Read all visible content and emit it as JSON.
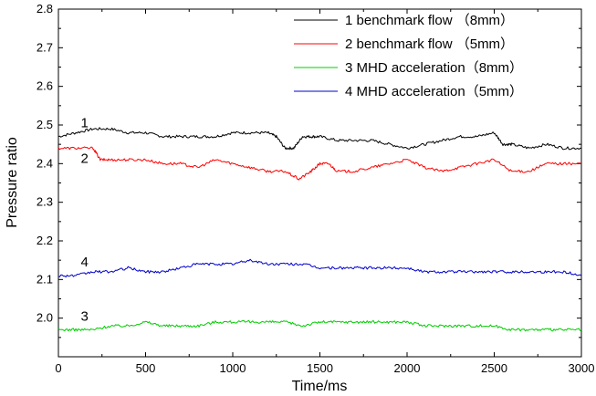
{
  "chart_data": {
    "type": "line",
    "xlabel": "Time/ms",
    "ylabel": "Pressure ratio",
    "xlim": [
      0,
      3000
    ],
    "ylim": [
      1.9,
      2.8
    ],
    "x_ticks": [
      "0",
      "500",
      "1000",
      "1500",
      "2000",
      "2500",
      "3000"
    ],
    "y_ticks": [
      "2.0",
      "2.1",
      "2.2",
      "2.3",
      "2.4",
      "2.5",
      "2.6",
      "2.7",
      "2.8"
    ],
    "legend_position": "top-right",
    "series": [
      {
        "name": "1 benchmark flow （8mm）",
        "curve_label": "1",
        "color": "#000000",
        "x": [
          0,
          100,
          200,
          300,
          400,
          500,
          600,
          700,
          800,
          900,
          1000,
          1100,
          1200,
          1250,
          1300,
          1350,
          1400,
          1450,
          1500,
          1600,
          1700,
          1800,
          1900,
          2000,
          2100,
          2200,
          2300,
          2400,
          2500,
          2550,
          2600,
          2700,
          2800,
          2900,
          3000
        ],
        "values": [
          2.47,
          2.48,
          2.49,
          2.49,
          2.48,
          2.48,
          2.47,
          2.47,
          2.47,
          2.47,
          2.48,
          2.48,
          2.48,
          2.47,
          2.44,
          2.44,
          2.47,
          2.47,
          2.47,
          2.46,
          2.46,
          2.46,
          2.45,
          2.44,
          2.45,
          2.46,
          2.47,
          2.47,
          2.48,
          2.45,
          2.45,
          2.44,
          2.45,
          2.44,
          2.44
        ]
      },
      {
        "name": "2 benchmark flow （5mm）",
        "curve_label": "2",
        "color": "#ff0000",
        "x": [
          0,
          100,
          200,
          240,
          300,
          400,
          500,
          600,
          700,
          800,
          900,
          1000,
          1100,
          1200,
          1300,
          1380,
          1450,
          1500,
          1550,
          1600,
          1700,
          1800,
          1900,
          2000,
          2100,
          2200,
          2300,
          2400,
          2500,
          2600,
          2700,
          2800,
          2900,
          3000
        ],
        "values": [
          2.44,
          2.44,
          2.44,
          2.41,
          2.41,
          2.41,
          2.41,
          2.4,
          2.4,
          2.39,
          2.41,
          2.4,
          2.39,
          2.38,
          2.38,
          2.36,
          2.38,
          2.4,
          2.4,
          2.38,
          2.38,
          2.39,
          2.4,
          2.41,
          2.39,
          2.38,
          2.39,
          2.4,
          2.41,
          2.38,
          2.38,
          2.4,
          2.4,
          2.4
        ]
      },
      {
        "name": "3 MHD acceleration（8mm）",
        "curve_label": "3",
        "color": "#00cc00",
        "x": [
          0,
          100,
          200,
          300,
          400,
          500,
          600,
          700,
          800,
          900,
          1000,
          1100,
          1200,
          1300,
          1400,
          1500,
          1600,
          1700,
          1800,
          1900,
          2000,
          2100,
          2200,
          2300,
          2400,
          2500,
          2600,
          2700,
          2800,
          2900,
          3000
        ],
        "values": [
          1.97,
          1.97,
          1.97,
          1.98,
          1.98,
          1.99,
          1.98,
          1.98,
          1.98,
          1.99,
          1.99,
          1.99,
          1.99,
          1.99,
          1.98,
          1.99,
          1.99,
          1.99,
          1.99,
          1.99,
          1.99,
          1.98,
          1.98,
          1.98,
          1.98,
          1.98,
          1.97,
          1.97,
          1.97,
          1.97,
          1.97
        ]
      },
      {
        "name": "4 MHD acceleration（5mm）",
        "curve_label": "4",
        "color": "#0000cc",
        "x": [
          0,
          100,
          200,
          300,
          400,
          500,
          600,
          700,
          800,
          900,
          1000,
          1100,
          1200,
          1300,
          1400,
          1500,
          1600,
          1700,
          1800,
          1900,
          2000,
          2100,
          2200,
          2300,
          2400,
          2500,
          2600,
          2700,
          2800,
          2900,
          3000
        ],
        "values": [
          2.11,
          2.11,
          2.12,
          2.12,
          2.13,
          2.12,
          2.12,
          2.13,
          2.14,
          2.14,
          2.14,
          2.15,
          2.14,
          2.14,
          2.14,
          2.13,
          2.13,
          2.13,
          2.13,
          2.13,
          2.13,
          2.12,
          2.12,
          2.12,
          2.12,
          2.12,
          2.12,
          2.12,
          2.12,
          2.12,
          2.11
        ]
      }
    ]
  }
}
